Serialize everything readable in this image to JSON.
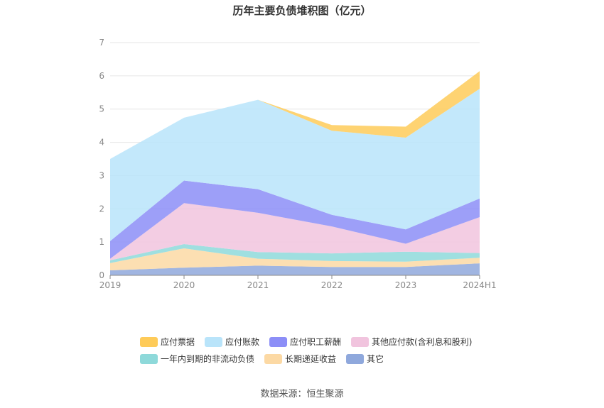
{
  "chart_data": {
    "type": "area",
    "title": "历年主要负债堆积图（亿元）",
    "source": "数据来源：恒生聚源",
    "categories": [
      "2019",
      "2020",
      "2021",
      "2022",
      "2023",
      "2024H1"
    ],
    "ylim": [
      0,
      7
    ],
    "yticks": [
      0,
      1,
      2,
      3,
      4,
      5,
      6,
      7
    ],
    "stacked": true,
    "grid": true,
    "legend_position": "bottom",
    "series": [
      {
        "name": "其它",
        "color": "#8fa8dc",
        "values": [
          0.15,
          0.23,
          0.29,
          0.25,
          0.25,
          0.36
        ]
      },
      {
        "name": "长期递延收益",
        "color": "#fcd9a4",
        "values": [
          0.22,
          0.58,
          0.21,
          0.18,
          0.16,
          0.17
        ]
      },
      {
        "name": "一年内到期的非流动负债",
        "color": "#8ed9da",
        "values": [
          0.08,
          0.13,
          0.2,
          0.23,
          0.3,
          0.14
        ]
      },
      {
        "name": "其他应付款(含利息和股利)",
        "color": "#f1c4de",
        "values": [
          0.05,
          1.23,
          1.18,
          0.81,
          0.24,
          1.08
        ]
      },
      {
        "name": "应付职工薪酬",
        "color": "#8c8ef7",
        "values": [
          0.53,
          0.68,
          0.71,
          0.35,
          0.43,
          0.56
        ]
      },
      {
        "name": "应付账款",
        "color": "#b9e4fa",
        "values": [
          2.47,
          1.89,
          2.69,
          2.53,
          2.76,
          3.3
        ]
      },
      {
        "name": "应付票据",
        "color": "#fecb59",
        "values": [
          0.0,
          0.0,
          0.0,
          0.17,
          0.33,
          0.53
        ]
      }
    ]
  }
}
